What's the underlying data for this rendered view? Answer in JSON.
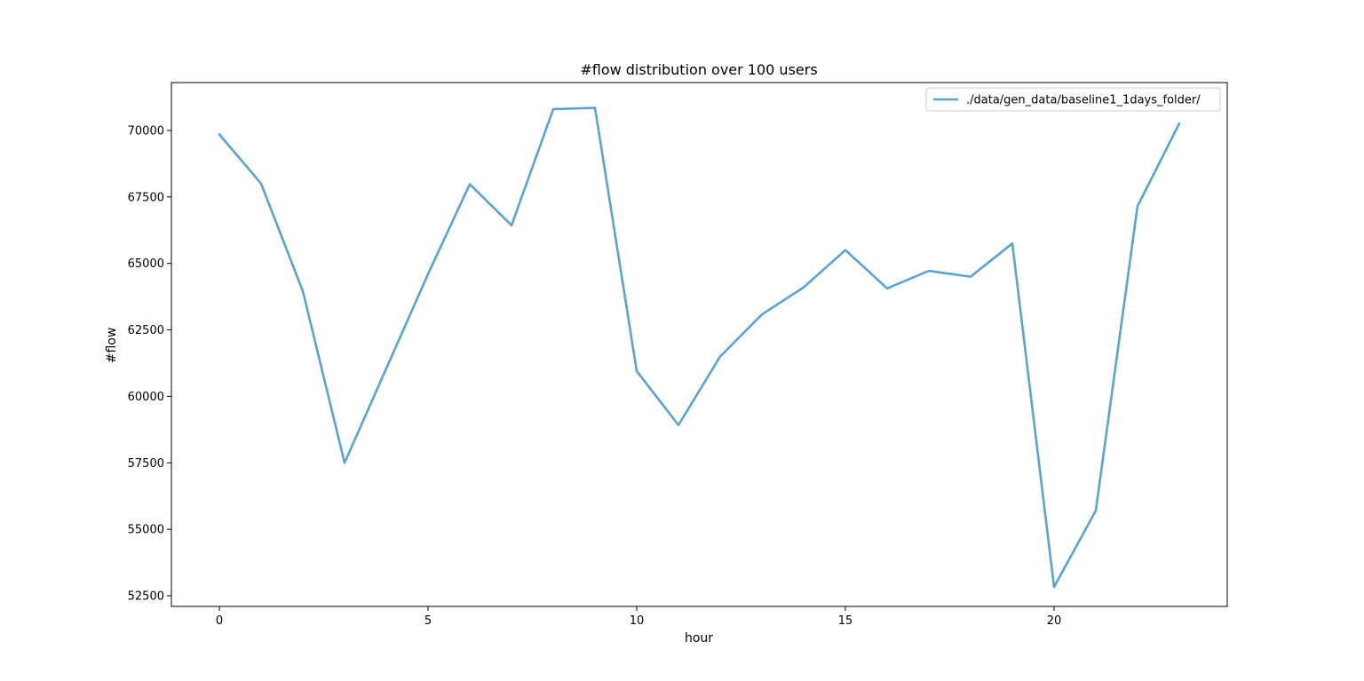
{
  "chart_data": {
    "type": "line",
    "title": "#flow distribution over 100 users",
    "xlabel": "hour",
    "ylabel": "#flow",
    "xlim": [
      -1.15,
      24.15
    ],
    "ylim": [
      52100,
      71800
    ],
    "xticks": [
      0,
      5,
      10,
      15,
      20
    ],
    "yticks": [
      52500,
      55000,
      57500,
      60000,
      62500,
      65000,
      67500,
      70000
    ],
    "grid": false,
    "legend_position": "top-right",
    "series": [
      {
        "name": "./data/gen_data/baseline1_1days_folder/",
        "color": "#5ba3cc",
        "x": [
          0,
          1,
          2,
          3,
          4,
          5,
          6,
          7,
          8,
          9,
          10,
          11,
          12,
          13,
          14,
          15,
          16,
          17,
          18,
          19,
          20,
          21,
          22,
          23
        ],
        "y": [
          69850,
          68000,
          63950,
          57500,
          61050,
          64600,
          67980,
          66430,
          70800,
          70850,
          60950,
          58920,
          61500,
          63080,
          64100,
          65500,
          64060,
          64720,
          64500,
          65750,
          52830,
          55700,
          67150,
          70260
        ]
      }
    ]
  }
}
